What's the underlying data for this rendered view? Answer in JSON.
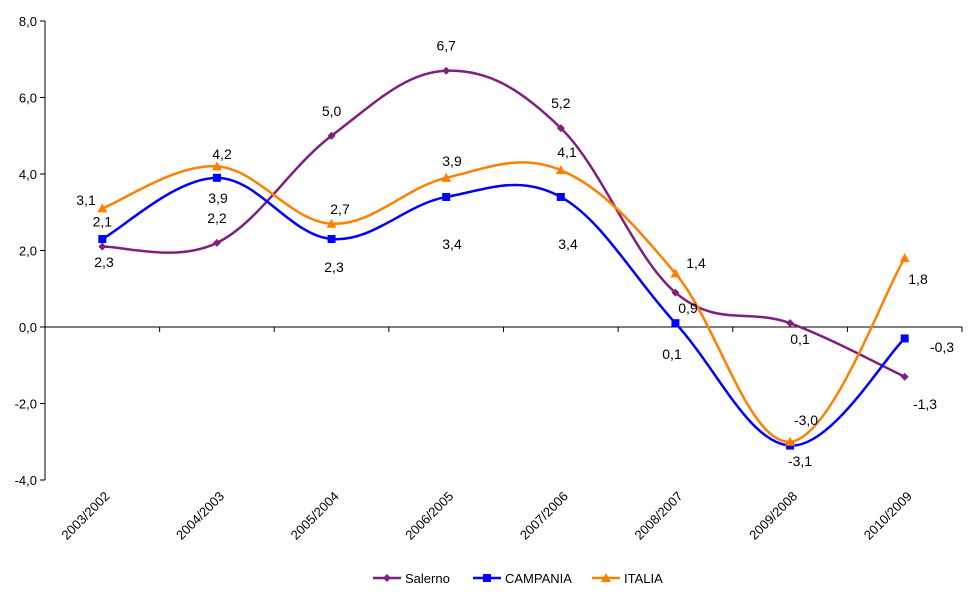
{
  "chart_data": {
    "type": "line",
    "title": "",
    "xlabel": "",
    "ylabel": "",
    "categories": [
      "2003/2002",
      "2004/2003",
      "2005/2004",
      "2006/2005",
      "2007/2006",
      "2008/2007",
      "2009/2008",
      "2010/2009"
    ],
    "ylim": [
      -4,
      8
    ],
    "yticks": [
      -4,
      -2,
      0,
      2,
      4,
      6,
      8
    ],
    "ytick_labels": [
      "-4,0",
      "-2,0",
      "0,0",
      "2,0",
      "4,0",
      "6,0",
      "8,0"
    ],
    "grid": false,
    "legend_position": "bottom",
    "series": [
      {
        "name": "Salerno",
        "color": "#7F1F7F",
        "marker": "diamond",
        "values": [
          2.1,
          2.2,
          5.0,
          6.7,
          5.2,
          0.9,
          0.1,
          -1.3
        ],
        "labels": [
          "2,1",
          "2,2",
          "5,0",
          "6,7",
          "5,2",
          "0,9",
          "0,1",
          "-1,3"
        ]
      },
      {
        "name": "CAMPANIA",
        "color": "#0000FF",
        "marker": "square",
        "values": [
          2.3,
          3.9,
          2.3,
          3.4,
          3.4,
          0.1,
          -3.1,
          -0.3
        ],
        "labels": [
          "2,3",
          "3,9",
          "2,3",
          "3,4",
          "3,4",
          "0,1",
          "-3,1",
          "-0,3"
        ]
      },
      {
        "name": "ITALIA",
        "color": "#FF8000",
        "marker": "triangle",
        "values": [
          3.1,
          4.2,
          2.7,
          3.9,
          4.1,
          1.4,
          -3.0,
          1.8
        ],
        "labels": [
          "3,1",
          "4,2",
          "2,7",
          "3,9",
          "4,1",
          "1,4",
          "-3,0",
          "1,8"
        ]
      }
    ]
  }
}
